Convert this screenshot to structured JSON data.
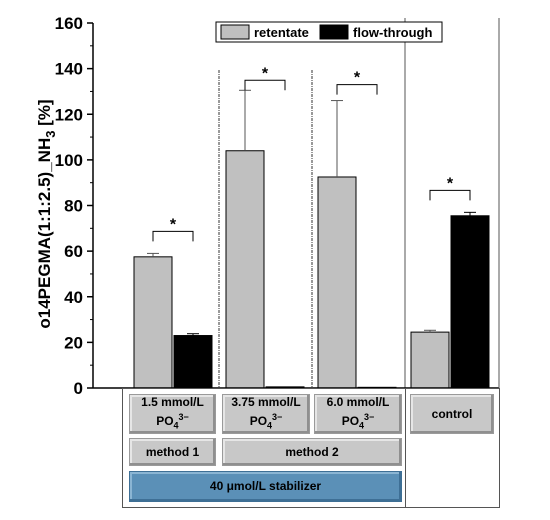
{
  "chart_data": {
    "type": "bar",
    "ylabel": "o14PEGMA(1:1:2.5)_NH",
    "ylabel_sub": "3",
    "ylabel_unit": " [%]",
    "ylim": [
      0,
      160
    ],
    "yticks": [
      0,
      20,
      40,
      60,
      80,
      100,
      120,
      140,
      160
    ],
    "legend_position": "top-right",
    "categories": [
      "1.5 mmol/L PO4 3−",
      "3.75 mmol/L PO4 3−",
      "6.0 mmol/L PO4 3−",
      "control"
    ],
    "series": [
      {
        "name": "retentate",
        "color": "#c0c0c0",
        "values": [
          57.5,
          104,
          92.5,
          24.5
        ],
        "errors": [
          1.5,
          26.5,
          33.5,
          0.8
        ]
      },
      {
        "name": "flow-through",
        "color": "#000000",
        "values": [
          23.0,
          0.5,
          0.3,
          75.5
        ],
        "errors": [
          0.8,
          0,
          0,
          1.5
        ]
      }
    ],
    "significance": [
      "*",
      "*",
      "*",
      "*"
    ]
  },
  "groups": {
    "g1": {
      "line1": "1.5 mmol/L",
      "chem": "PO",
      "sub": "4",
      "sup": "3−"
    },
    "g2": {
      "line1": "3.75 mmol/L",
      "chem": "PO",
      "sub": "4",
      "sup": "3−"
    },
    "g3": {
      "line1": "6.0 mmol/L",
      "chem": "PO",
      "sub": "4",
      "sup": "3−"
    },
    "g4": {
      "line1": "control"
    },
    "method1": "method 1",
    "method2": "method 2",
    "stabilizer": "40 μmol/L stabilizer"
  }
}
